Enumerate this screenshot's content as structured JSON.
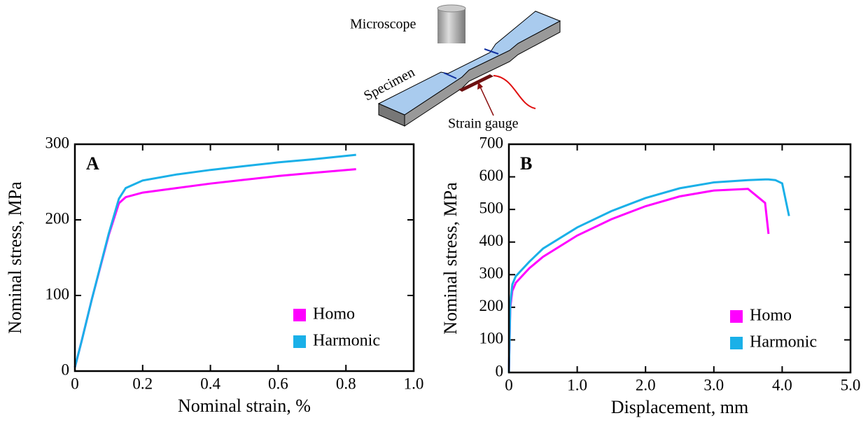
{
  "diagram": {
    "microscope": "Microscope",
    "specimen": "Specimen",
    "gauge": "Strain gauge"
  },
  "chart_data": [
    {
      "type": "line",
      "panel": "A",
      "xlabel": "Nominal strain, %",
      "ylabel": "Nominal stress, MPa",
      "xlim": [
        0,
        1
      ],
      "xticks": [
        0,
        0.2,
        0.4,
        0.6,
        0.8,
        {
          "value": 1,
          "label": "1.0"
        }
      ],
      "ylim": [
        0,
        300
      ],
      "yticks": [
        0,
        100,
        200,
        300
      ],
      "legend": "lower right",
      "x": [
        0,
        0.02,
        0.05,
        0.1,
        0.13,
        0.15,
        0.2,
        0.3,
        0.4,
        0.5,
        0.6,
        0.7,
        0.83
      ],
      "series": [
        {
          "name": "Homo",
          "color": "#ff00ff",
          "values": [
            5,
            40,
            95,
            180,
            222,
            230,
            236,
            242,
            248,
            253,
            258,
            262,
            267
          ]
        },
        {
          "name": "Harmonic",
          "color": "#1ab0e8",
          "values": [
            5,
            40,
            95,
            182,
            228,
            242,
            252,
            260,
            266,
            271,
            276,
            280,
            286
          ]
        }
      ]
    },
    {
      "type": "line",
      "panel": "B",
      "xlabel": "Displacement, mm",
      "ylabel": "Nominal stress, MPa",
      "xlim": [
        0,
        5
      ],
      "xticks": [
        0,
        {
          "value": 1,
          "label": "1.0"
        },
        {
          "value": 2,
          "label": "2.0"
        },
        {
          "value": 3,
          "label": "3.0"
        },
        {
          "value": 4,
          "label": "4.0"
        },
        {
          "value": 5,
          "label": "5.0"
        }
      ],
      "ylim": [
        0,
        700
      ],
      "yticks": [
        0,
        100,
        200,
        300,
        400,
        500,
        600,
        700
      ],
      "legend": "lower right",
      "x": [
        0,
        0.02,
        0.05,
        0.1,
        0.3,
        0.5,
        1.0,
        1.5,
        2.0,
        2.5,
        3.0,
        3.5,
        3.75,
        3.8,
        3.9,
        4.0,
        4.1
      ],
      "series": [
        {
          "name": "Homo",
          "color": "#ff00ff",
          "values": [
            0,
            200,
            250,
            275,
            320,
            355,
            420,
            470,
            510,
            540,
            558,
            563,
            520,
            425,
            null,
            null,
            null
          ]
        },
        {
          "name": "Harmonic",
          "color": "#1ab0e8",
          "values": [
            0,
            210,
            270,
            295,
            340,
            380,
            445,
            495,
            535,
            565,
            583,
            590,
            592,
            592,
            590,
            580,
            480
          ]
        }
      ]
    }
  ]
}
